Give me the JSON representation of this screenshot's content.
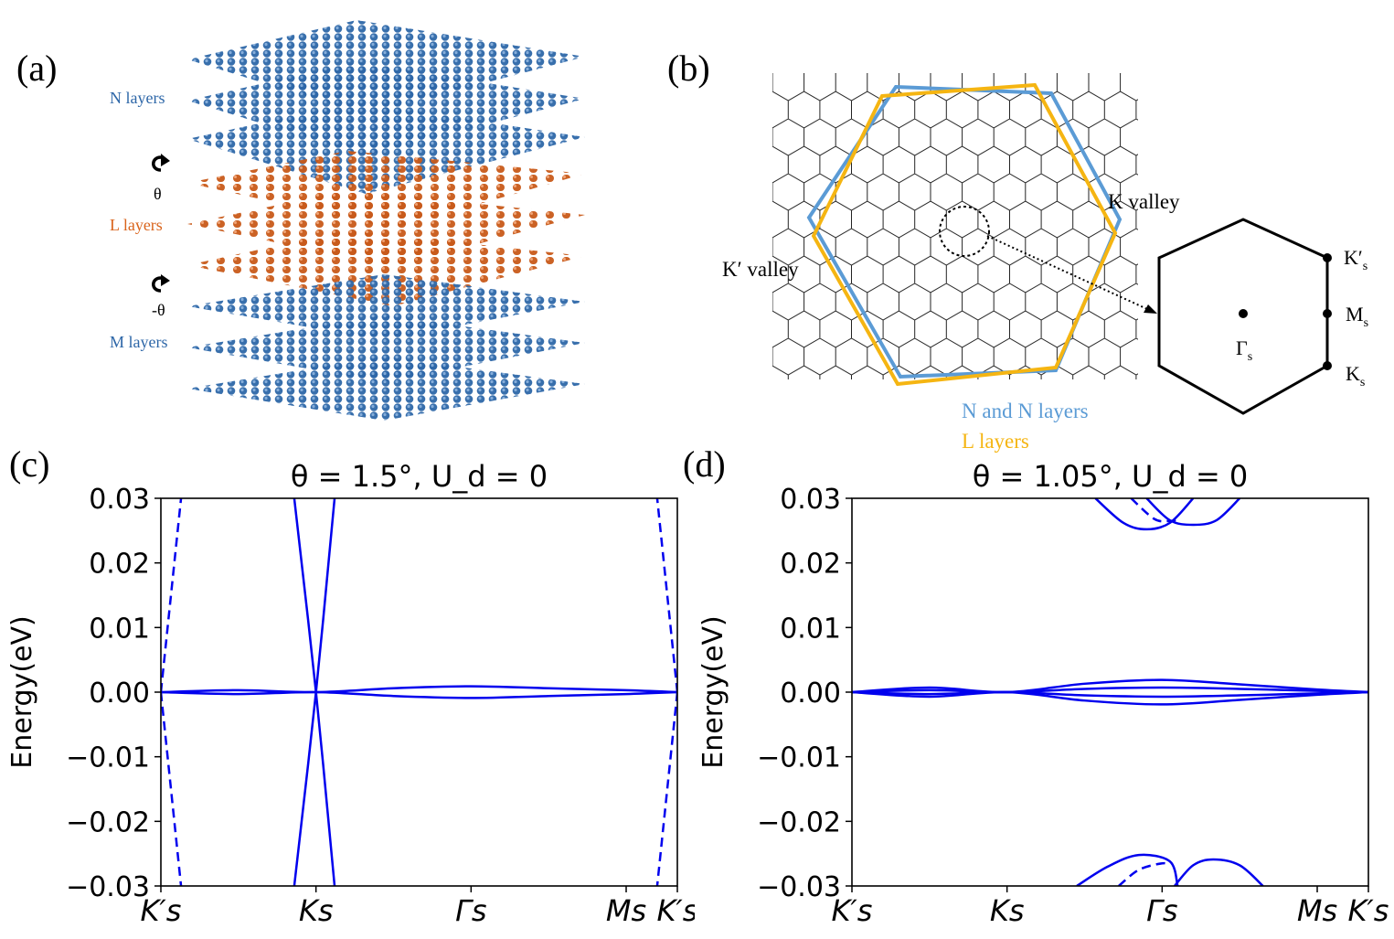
{
  "colors": {
    "layer_blue": "#2e67a8",
    "layer_orange": "#c85a1a",
    "bz_blue": "#5b9bd5",
    "bz_yellow": "#f5b512",
    "band": "#0000ee",
    "label_blue": "#2e67a8",
    "label_orange": "#d9631b"
  },
  "panel_a": {
    "tag": "(a)",
    "n_label": "N layers",
    "theta_label": "θ",
    "l_label": "L layers",
    "neg_theta_label": "-θ",
    "m_label": "M layers"
  },
  "panel_b": {
    "tag": "(b)",
    "k_valley": "K valley",
    "kp_valley": "K′ valley",
    "legend_blue": "N and N layers",
    "legend_yellow": "L layers",
    "pt_kp": "K′",
    "pt_m": "M",
    "pt_k": "K",
    "pt_gamma": "Γ",
    "sub": "s"
  },
  "chart_data": [
    {
      "type": "line",
      "panel": "(c)",
      "title": "θ = 1.5°, U_d = 0",
      "ylabel": "Energy(eV)",
      "xlabel": "",
      "ylim": [
        -0.03,
        0.03
      ],
      "yticks": [
        "0.03",
        "0.02",
        "0.01",
        "0.00",
        "−0.01",
        "−0.02",
        "−0.03"
      ],
      "xticks": [
        "K′s",
        "Ks",
        "Γs",
        "Ms",
        "K′s"
      ],
      "x_positions": [
        0,
        1,
        2,
        3,
        3.33
      ],
      "series": [
        {
          "name": "dirac-1",
          "style": "solid",
          "points": [
            [
              0.86,
              0.03
            ],
            [
              1.0,
              0.0
            ],
            [
              1.12,
              -0.03
            ]
          ]
        },
        {
          "name": "dirac-2",
          "style": "solid",
          "points": [
            [
              0.86,
              -0.03
            ],
            [
              1.0,
              0.0
            ],
            [
              1.12,
              0.03
            ]
          ]
        },
        {
          "name": "flat-upper",
          "style": "solid",
          "points": [
            [
              0,
              0.0
            ],
            [
              0.5,
              0.0003
            ],
            [
              1.0,
              0.0
            ],
            [
              1.5,
              0.0006
            ],
            [
              2.0,
              0.0009
            ],
            [
              2.5,
              0.0006
            ],
            [
              3.0,
              0.0003
            ],
            [
              3.33,
              0.0
            ]
          ]
        },
        {
          "name": "flat-lower",
          "style": "solid",
          "points": [
            [
              0,
              0.0
            ],
            [
              0.5,
              -0.0003
            ],
            [
              1.0,
              0.0
            ],
            [
              1.5,
              -0.0006
            ],
            [
              2.0,
              -0.0009
            ],
            [
              2.5,
              -0.0006
            ],
            [
              3.0,
              -0.0003
            ],
            [
              3.33,
              0.0
            ]
          ]
        },
        {
          "name": "kp-left-up",
          "style": "dashed",
          "points": [
            [
              0.0,
              0.0
            ],
            [
              0.13,
              0.03
            ]
          ]
        },
        {
          "name": "kp-left-down",
          "style": "dashed",
          "points": [
            [
              0.0,
              0.0
            ],
            [
              0.13,
              -0.03
            ]
          ]
        },
        {
          "name": "kp-right-up",
          "style": "dashed",
          "points": [
            [
              3.33,
              0.0
            ],
            [
              3.2,
              0.03
            ]
          ]
        },
        {
          "name": "kp-right-down",
          "style": "dashed",
          "points": [
            [
              3.33,
              0.0
            ],
            [
              3.2,
              -0.03
            ]
          ]
        }
      ]
    },
    {
      "type": "line",
      "panel": "(d)",
      "title": "θ = 1.05°, U_d = 0",
      "ylabel": "Energy(eV)",
      "xlabel": "",
      "ylim": [
        -0.03,
        0.03
      ],
      "yticks": [
        "0.03",
        "0.02",
        "0.01",
        "0.00",
        "−0.01",
        "−0.02",
        "−0.03"
      ],
      "xticks": [
        "K′s",
        "Ks",
        "Γs",
        "Ms",
        "K′s"
      ],
      "x_positions": [
        0,
        1,
        2,
        3,
        3.33
      ],
      "series": [
        {
          "name": "flat-1",
          "style": "solid",
          "points": [
            [
              0,
              0.0
            ],
            [
              0.5,
              0.0007
            ],
            [
              1.0,
              0.0
            ],
            [
              1.5,
              0.0013
            ],
            [
              2.0,
              0.0019
            ],
            [
              2.5,
              0.0012
            ],
            [
              3.0,
              0.0004
            ],
            [
              3.33,
              0.0
            ]
          ]
        },
        {
          "name": "flat-2",
          "style": "solid",
          "points": [
            [
              0,
              0.0
            ],
            [
              0.5,
              0.0003
            ],
            [
              1.0,
              0.0
            ],
            [
              1.5,
              0.0005
            ],
            [
              2.0,
              0.0007
            ],
            [
              2.5,
              0.0005
            ],
            [
              3.0,
              0.0002
            ],
            [
              3.33,
              0.0
            ]
          ]
        },
        {
          "name": "flat-3",
          "style": "solid",
          "points": [
            [
              0,
              0.0
            ],
            [
              0.5,
              -0.0003
            ],
            [
              1.0,
              0.0
            ],
            [
              1.5,
              -0.0005
            ],
            [
              2.0,
              -0.0007
            ],
            [
              2.5,
              -0.0005
            ],
            [
              3.0,
              -0.0002
            ],
            [
              3.33,
              0.0
            ]
          ]
        },
        {
          "name": "flat-4",
          "style": "solid",
          "points": [
            [
              0,
              0.0
            ],
            [
              0.5,
              -0.0007
            ],
            [
              1.0,
              0.0
            ],
            [
              1.5,
              -0.0013
            ],
            [
              2.0,
              -0.0019
            ],
            [
              2.5,
              -0.0012
            ],
            [
              3.0,
              -0.0004
            ],
            [
              3.33,
              0.0
            ]
          ]
        },
        {
          "name": "remote-up-1",
          "style": "solid",
          "points": [
            [
              1.57,
              0.03
            ],
            [
              1.75,
              0.0262
            ],
            [
              1.9,
              0.0252
            ],
            [
              2.05,
              0.0262
            ],
            [
              2.2,
              0.03
            ]
          ]
        },
        {
          "name": "remote-up-2",
          "style": "solid",
          "points": [
            [
              1.9,
              0.03
            ],
            [
              2.05,
              0.0266
            ],
            [
              2.2,
              0.0259
            ],
            [
              2.35,
              0.0266
            ],
            [
              2.5,
              0.03
            ]
          ]
        },
        {
          "name": "remote-up-3",
          "style": "dashed",
          "points": [
            [
              1.8,
              0.03
            ],
            [
              1.95,
              0.0268
            ],
            [
              2.05,
              0.0265
            ],
            [
              2.12,
              0.0268
            ]
          ]
        },
        {
          "name": "remote-dn-1",
          "style": "solid",
          "points": [
            [
              1.45,
              -0.03
            ],
            [
              1.65,
              -0.027
            ],
            [
              1.85,
              -0.0252
            ],
            [
              2.05,
              -0.0262
            ],
            [
              2.1,
              -0.03
            ]
          ]
        },
        {
          "name": "remote-dn-2",
          "style": "solid",
          "points": [
            [
              2.08,
              -0.03
            ],
            [
              2.2,
              -0.0268
            ],
            [
              2.33,
              -0.0259
            ],
            [
              2.5,
              -0.0268
            ],
            [
              2.65,
              -0.03
            ]
          ]
        },
        {
          "name": "remote-dn-3",
          "style": "dashed",
          "points": [
            [
              1.72,
              -0.03
            ],
            [
              1.85,
              -0.0275
            ],
            [
              2.0,
              -0.0265
            ],
            [
              2.05,
              -0.0268
            ]
          ]
        }
      ]
    }
  ]
}
